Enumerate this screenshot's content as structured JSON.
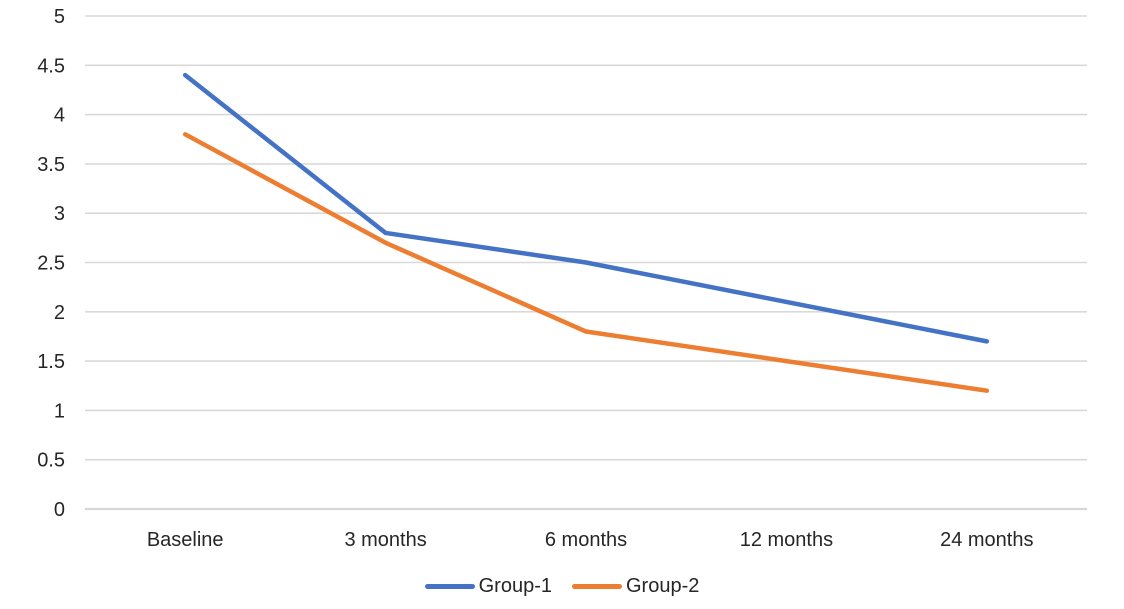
{
  "chart_data": {
    "type": "line",
    "title": "",
    "categories": [
      "Baseline",
      "3 months",
      "6 months",
      "12 months",
      "24 months"
    ],
    "series": [
      {
        "name": "Group-1",
        "color": "#4472C4",
        "values": [
          4.4,
          2.8,
          2.5,
          2.1,
          1.7
        ]
      },
      {
        "name": "Group-2",
        "color": "#ED7D31",
        "values": [
          3.8,
          2.7,
          1.8,
          1.5,
          1.2
        ]
      }
    ],
    "xlabel": "",
    "ylabel": "",
    "ylim": [
      0,
      5
    ],
    "ytick_step": 0.5,
    "grid": true,
    "legend_position": "bottom",
    "colors": {
      "gridline": "#D9D9D9",
      "axis_line": "#D6D6D6",
      "tick_label": "#262626"
    }
  }
}
